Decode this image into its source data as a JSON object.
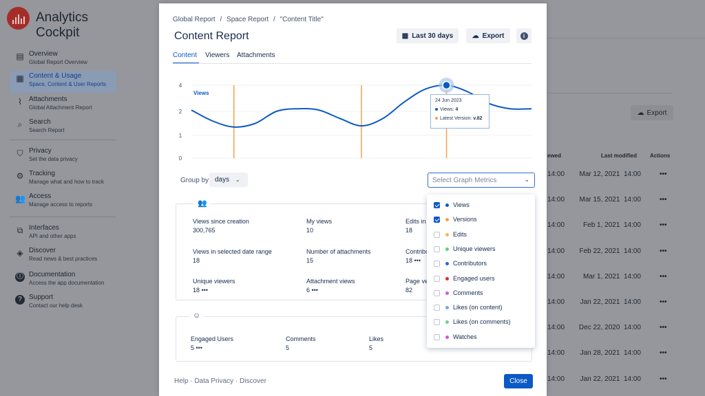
{
  "app": {
    "title": "Analytics Cockpit",
    "nav": [
      {
        "icon": "document-icon",
        "title": "Overview",
        "subtitle": "Global Report Overview",
        "active": false
      },
      {
        "icon": "grid-icon",
        "title": "Content & Usage",
        "subtitle": "Space, Content & User Reports",
        "active": true
      },
      {
        "icon": "paperclip-icon",
        "title": "Attachments",
        "subtitle": "Global Attachment Report",
        "active": false
      },
      {
        "icon": "search-icon",
        "title": "Search",
        "subtitle": "Search Report",
        "active": false
      },
      {
        "icon": "shield-icon",
        "title": "Privacy",
        "subtitle": "Set the data privacy",
        "active": false
      },
      {
        "icon": "gear-icon",
        "title": "Tracking",
        "subtitle": "Manage what and how to track",
        "active": false
      },
      {
        "icon": "people-icon",
        "title": "Access",
        "subtitle": "Manage access to reports",
        "active": false
      },
      {
        "icon": "puzzle-icon",
        "title": "Interfaces",
        "subtitle": "API and other apps",
        "active": false
      },
      {
        "icon": "compass-icon",
        "title": "Discover",
        "subtitle": "Read news & best practices",
        "active": false
      },
      {
        "icon": "info-icon",
        "title": "Documentation",
        "subtitle": "Access the app documentation",
        "active": false
      },
      {
        "icon": "help-icon",
        "title": "Support",
        "subtitle": "Contact our help desk",
        "active": false
      }
    ],
    "export_label": "Export",
    "table": {
      "headers": {
        "viewed": "ewed",
        "modified": "Last modified",
        "actions": "Actions"
      },
      "rows": [
        {
          "viewed": "14:00",
          "modified": "Mar 12, 2021  14:00"
        },
        {
          "viewed": "14:00",
          "modified": "Mar 15, 2021  14:00"
        },
        {
          "viewed": "14:00",
          "modified": "Feb 1, 2021  14:00"
        },
        {
          "viewed": "14:00",
          "modified": "Feb 22, 2021  14:00"
        },
        {
          "viewed": "14:00",
          "modified": "Mar 1, 2021  14:00"
        },
        {
          "viewed": "14:00",
          "modified": "Jan 22, 2021  14:00"
        },
        {
          "viewed": "14:00",
          "modified": "Dec 22, 2020  14:00"
        },
        {
          "viewed": "14:00",
          "modified": "Jan 28, 2021  14:00"
        },
        {
          "viewed": "14:00",
          "modified": "Jan 22, 2021  14:00"
        }
      ],
      "more": "•••"
    }
  },
  "modal": {
    "breadcrumbs": [
      "Global Report",
      "/",
      "Space Report",
      "/",
      "\"Content Title\""
    ],
    "title": "Content Report",
    "date_button": "Last 30 days",
    "export_button": "Export",
    "tabs": [
      "Content",
      "Viewers",
      "Attachments"
    ],
    "chart_legend": "Views",
    "tooltip": {
      "date": "24 Jun 2023",
      "views_label": "Views:",
      "views_value": "4",
      "version_label": "Latest Version:",
      "version_value": "v.82"
    },
    "group_by_label": "Group by",
    "group_by_value": "days",
    "metrics_placeholder": "Select Graph Metrics",
    "stats": [
      {
        "label": "Views since creation",
        "value": "300,765"
      },
      {
        "label": "My views",
        "value": "10"
      },
      {
        "label": "Edits in",
        "value": "18"
      },
      {
        "label": "Views in selected date range",
        "value": "18"
      },
      {
        "label": "Number of attachments",
        "value": "15"
      },
      {
        "label": "Contribu",
        "value": "18 •••"
      },
      {
        "label": "Unique viewers",
        "value": "18 •••"
      },
      {
        "label": "Attachment views",
        "value": "6 •••"
      },
      {
        "label": "Page ve",
        "value": "82"
      }
    ],
    "engagement": [
      {
        "label": "Engaged Users",
        "value": "5 •••"
      },
      {
        "label": "Comments",
        "value": "5"
      },
      {
        "label": "Likes",
        "value": "5"
      }
    ],
    "footer_links": "Help · Data Privacy · Discover",
    "close_button": "Close"
  },
  "metrics_options": [
    {
      "label": "Views",
      "checked": true,
      "color": "#0b59c5"
    },
    {
      "label": "Versions",
      "checked": true,
      "color": "#f5a04a"
    },
    {
      "label": "Edits",
      "checked": false,
      "color": "#f0b75a"
    },
    {
      "label": "Unique viewers",
      "checked": false,
      "color": "#57d37a"
    },
    {
      "label": "Contributors",
      "checked": false,
      "color": "#2f66d2"
    },
    {
      "label": "Engaged users",
      "checked": false,
      "color": "#d92b2b"
    },
    {
      "label": "Comments",
      "checked": false,
      "color": "#c65fe0"
    },
    {
      "label": "Likes (on content)",
      "checked": false,
      "color": "#6fa8e8"
    },
    {
      "label": "Likes (on comments)",
      "checked": false,
      "color": "#6fd08a"
    },
    {
      "label": "Watches",
      "checked": false,
      "color": "#d058d8"
    }
  ],
  "chart_data": {
    "type": "line",
    "title": "",
    "ylabel": "",
    "ylim": [
      0,
      4
    ],
    "yticks": [
      "0",
      "1",
      "2",
      "4"
    ],
    "series": [
      {
        "name": "Views",
        "color": "#0b59c5",
        "x": [
          0,
          1,
          2,
          3,
          4,
          5,
          6,
          7,
          8,
          9,
          10,
          11,
          12,
          13,
          14,
          15,
          16
        ],
        "values": [
          2.1,
          1.6,
          1.35,
          1.5,
          2.0,
          2.2,
          2.1,
          1.7,
          1.4,
          1.7,
          2.7,
          3.7,
          4.0,
          3.5,
          2.6,
          2.2,
          2.2
        ]
      },
      {
        "name": "Versions",
        "color": "#f5a04a",
        "x": [
          2,
          8,
          12
        ],
        "values": [
          4,
          4,
          4
        ]
      }
    ],
    "highlight": {
      "x": 12,
      "y": 4,
      "date": "24 Jun 2023"
    }
  }
}
